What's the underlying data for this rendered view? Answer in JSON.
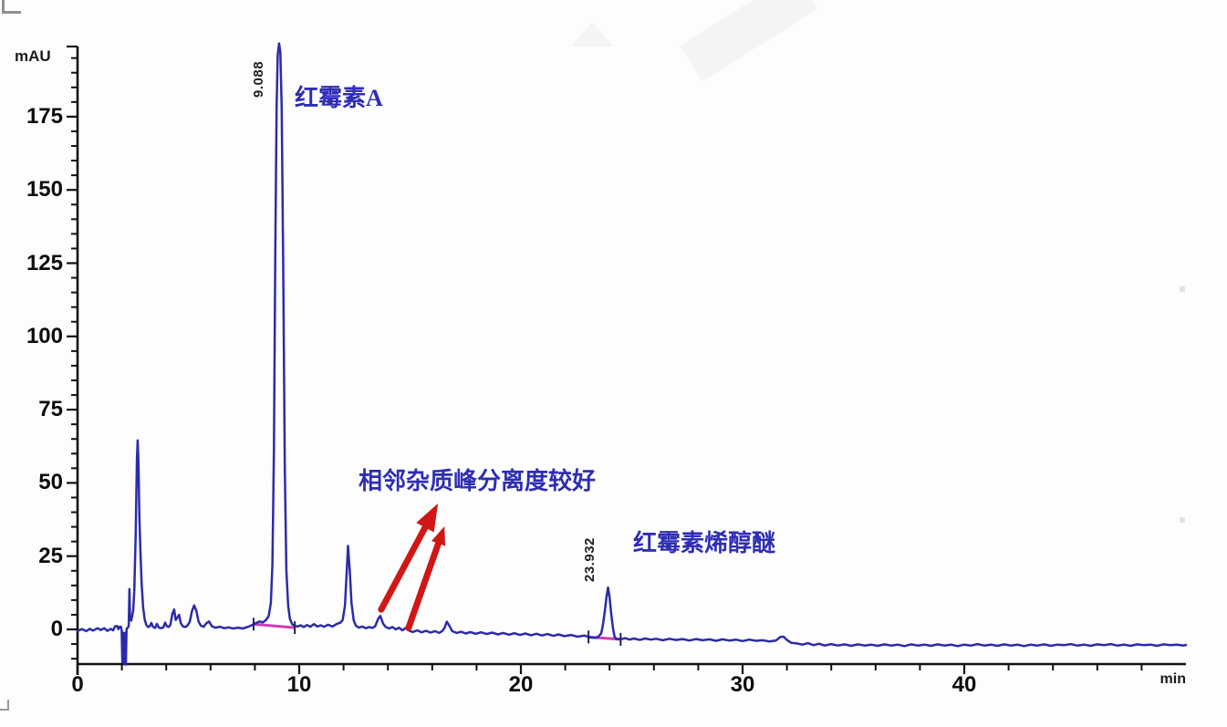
{
  "chart_data": {
    "type": "line",
    "description": "HPLC chromatogram (UV detection)",
    "xlabel": "min",
    "ylabel": "mAU",
    "xlim": [
      0,
      50
    ],
    "ylim": [
      -15,
      205
    ],
    "x_axis": {
      "unit": "min",
      "major_ticks": [
        0,
        10,
        20,
        30,
        40
      ],
      "minor_step": 2,
      "minor_min": 2,
      "minor_max": 48
    },
    "y_axis": {
      "unit": "mAU",
      "major_ticks": [
        0,
        25,
        50,
        75,
        100,
        125,
        150,
        175
      ],
      "minor_step": 5,
      "minor_min": -10,
      "minor_max": 195
    },
    "colors": {
      "trace": "#2b2baa",
      "integration": "#cf3cb4",
      "arrow": "#d11616",
      "annotation": "#2e2eb5",
      "axis": "#111111"
    },
    "peaks": [
      {
        "rt_label": "9.088",
        "rt_min": 9.088,
        "height_mau": 200,
        "name": "红霉素A"
      },
      {
        "rt_label": "23.932",
        "rt_min": 23.932,
        "height_mau": 14.3,
        "name": "红霉素烯醇醚"
      }
    ],
    "annotation_note": "相邻杂质峰分离度较好",
    "integration_baselines": [
      {
        "x1": 7.94,
        "y1": 1.8,
        "x2": 9.8,
        "y2": 0.6
      },
      {
        "x1": 23.05,
        "y1": -2.6,
        "x2": 24.5,
        "y2": -3.4
      }
    ],
    "arrows": [
      {
        "from_x": 13.7,
        "from_y": 6.8,
        "to_x": 16.26,
        "to_y": 43.0,
        "head_len": 30,
        "head_w": 11
      },
      {
        "from_x": 14.93,
        "from_y": 0.5,
        "to_x": 16.55,
        "to_y": 35.2,
        "head_len": 20,
        "head_w": 8
      }
    ],
    "series": [
      {
        "name": "UV trace",
        "points": [
          [
            0,
            -0.5
          ],
          [
            0.2,
            0.1
          ],
          [
            0.4,
            -0.6
          ],
          [
            0.55,
            0.2
          ],
          [
            0.7,
            -0.4
          ],
          [
            0.9,
            0.4
          ],
          [
            1.05,
            -0.2
          ],
          [
            1.2,
            0.4
          ],
          [
            1.35,
            -0.5
          ],
          [
            1.5,
            0.2
          ],
          [
            1.6,
            -0.3
          ],
          [
            1.7,
            1.1
          ],
          [
            1.8,
            1.1
          ],
          [
            1.84,
            0.1
          ],
          [
            1.9,
            0.9
          ],
          [
            1.96,
            0.9
          ],
          [
            1.99,
            -0.3
          ],
          [
            2.02,
            -11.2
          ],
          [
            2.05,
            -11.2
          ],
          [
            2.07,
            -1.2
          ],
          [
            2.11,
            -1.2
          ],
          [
            2.14,
            -12
          ],
          [
            2.18,
            -12
          ],
          [
            2.21,
            0.2
          ],
          [
            2.27,
            0.6
          ],
          [
            2.31,
            1.2
          ],
          [
            2.34,
            13.8
          ],
          [
            2.37,
            3.6
          ],
          [
            2.42,
            3.0
          ],
          [
            2.46,
            4.4
          ],
          [
            2.51,
            6.5
          ],
          [
            2.56,
            13
          ],
          [
            2.62,
            32
          ],
          [
            2.68,
            58
          ],
          [
            2.71,
            64.5
          ],
          [
            2.75,
            57
          ],
          [
            2.79,
            38
          ],
          [
            2.84,
            26
          ],
          [
            2.89,
            16
          ],
          [
            2.96,
            7.5
          ],
          [
            3.03,
            3.4
          ],
          [
            3.1,
            1.6
          ],
          [
            3.18,
            0.8
          ],
          [
            3.26,
            1.1
          ],
          [
            3.33,
            2.2
          ],
          [
            3.41,
            0.8
          ],
          [
            3.5,
            0.5
          ],
          [
            3.58,
            1.9
          ],
          [
            3.67,
            0.6
          ],
          [
            3.77,
            0.4
          ],
          [
            3.87,
            0.7
          ],
          [
            3.95,
            2.3
          ],
          [
            4.03,
            1.1
          ],
          [
            4.11,
            0.8
          ],
          [
            4.19,
            1.6
          ],
          [
            4.28,
            5.4
          ],
          [
            4.36,
            6.8
          ],
          [
            4.43,
            3.2
          ],
          [
            4.51,
            4.1
          ],
          [
            4.58,
            5.0
          ],
          [
            4.66,
            2.1
          ],
          [
            4.76,
            1.0
          ],
          [
            4.86,
            0.8
          ],
          [
            4.96,
            1.3
          ],
          [
            5.06,
            2.6
          ],
          [
            5.16,
            6.2
          ],
          [
            5.26,
            8.2
          ],
          [
            5.36,
            6.4
          ],
          [
            5.46,
            2.6
          ],
          [
            5.57,
            1.2
          ],
          [
            5.69,
            0.9
          ],
          [
            5.81,
            2.1
          ],
          [
            5.93,
            2.7
          ],
          [
            6.06,
            1.1
          ],
          [
            6.22,
            0.6
          ],
          [
            6.42,
            0.9
          ],
          [
            6.62,
            0.4
          ],
          [
            6.82,
            0.7
          ],
          [
            7.02,
            0.3
          ],
          [
            7.24,
            0.6
          ],
          [
            7.46,
            0.3
          ],
          [
            7.7,
            0.9
          ],
          [
            7.9,
            1.6
          ],
          [
            8.06,
            2.2
          ],
          [
            8.22,
            2.7
          ],
          [
            8.36,
            2.4
          ],
          [
            8.5,
            3.2
          ],
          [
            8.62,
            4.5
          ],
          [
            8.72,
            9
          ],
          [
            8.79,
            22
          ],
          [
            8.86,
            62
          ],
          [
            8.92,
            130
          ],
          [
            8.98,
            178
          ],
          [
            9.03,
            196
          ],
          [
            9.09,
            200
          ],
          [
            9.15,
            197
          ],
          [
            9.21,
            178
          ],
          [
            9.28,
            122
          ],
          [
            9.35,
            55
          ],
          [
            9.42,
            20
          ],
          [
            9.5,
            8
          ],
          [
            9.58,
            3.6
          ],
          [
            9.68,
            1.8
          ],
          [
            9.8,
            1.2
          ],
          [
            9.93,
            1.0
          ],
          [
            10.06,
            1.4
          ],
          [
            10.2,
            0.8
          ],
          [
            10.35,
            1.5
          ],
          [
            10.5,
            0.9
          ],
          [
            10.66,
            1.8
          ],
          [
            10.82,
            1.0
          ],
          [
            10.97,
            1.4
          ],
          [
            11.12,
            0.9
          ],
          [
            11.3,
            1.6
          ],
          [
            11.5,
            1.0
          ],
          [
            11.7,
            1.9
          ],
          [
            11.86,
            2.3
          ],
          [
            11.96,
            3.2
          ],
          [
            12.06,
            8
          ],
          [
            12.13,
            18
          ],
          [
            12.2,
            28.5
          ],
          [
            12.28,
            20
          ],
          [
            12.36,
            9
          ],
          [
            12.46,
            3
          ],
          [
            12.56,
            1.2
          ],
          [
            12.7,
            0.6
          ],
          [
            12.85,
            1.0
          ],
          [
            13.0,
            0.4
          ],
          [
            13.16,
            0.8
          ],
          [
            13.3,
            0.5
          ],
          [
            13.43,
            1.1
          ],
          [
            13.56,
            3.6
          ],
          [
            13.66,
            4.6
          ],
          [
            13.78,
            2.0
          ],
          [
            13.9,
            0.8
          ],
          [
            14.06,
            0.3
          ],
          [
            14.2,
            0.8
          ],
          [
            14.36,
            0.0
          ],
          [
            14.5,
            0.6
          ],
          [
            14.66,
            -0.3
          ],
          [
            14.8,
            0.5
          ],
          [
            14.96,
            -0.4
          ],
          [
            15.12,
            -0.9
          ],
          [
            15.32,
            -0.3
          ],
          [
            15.52,
            -1.0
          ],
          [
            15.72,
            -0.5
          ],
          [
            15.92,
            -1.1
          ],
          [
            16.12,
            -0.6
          ],
          [
            16.32,
            -1.2
          ],
          [
            16.46,
            -0.5
          ],
          [
            16.56,
            0.6
          ],
          [
            16.66,
            2.6
          ],
          [
            16.76,
            1.4
          ],
          [
            16.9,
            -0.6
          ],
          [
            17.1,
            -1.2
          ],
          [
            17.3,
            -0.8
          ],
          [
            17.52,
            -1.4
          ],
          [
            17.72,
            -0.9
          ],
          [
            17.96,
            -1.5
          ],
          [
            18.2,
            -1.0
          ],
          [
            18.46,
            -1.6
          ],
          [
            18.7,
            -1.1
          ],
          [
            18.96,
            -1.7
          ],
          [
            19.2,
            -1.2
          ],
          [
            19.46,
            -1.8
          ],
          [
            19.7,
            -1.3
          ],
          [
            19.96,
            -1.9
          ],
          [
            20.2,
            -1.4
          ],
          [
            20.46,
            -2.0
          ],
          [
            20.7,
            -1.5
          ],
          [
            20.96,
            -2.1
          ],
          [
            21.2,
            -1.6
          ],
          [
            21.46,
            -2.2
          ],
          [
            21.7,
            -1.7
          ],
          [
            21.96,
            -2.3
          ],
          [
            22.26,
            -1.9
          ],
          [
            22.56,
            -2.5
          ],
          [
            22.86,
            -2.1
          ],
          [
            23.1,
            -2.7
          ],
          [
            23.36,
            -2.9
          ],
          [
            23.5,
            -2.4
          ],
          [
            23.62,
            -1.4
          ],
          [
            23.7,
            1.5
          ],
          [
            23.78,
            6
          ],
          [
            23.86,
            11
          ],
          [
            23.93,
            14.3
          ],
          [
            24.0,
            11
          ],
          [
            24.08,
            5
          ],
          [
            24.16,
            0
          ],
          [
            24.23,
            -2.6
          ],
          [
            24.33,
            -3.3
          ],
          [
            24.5,
            -3.4
          ],
          [
            24.7,
            -3.0
          ],
          [
            24.9,
            -3.5
          ],
          [
            25.1,
            -3.1
          ],
          [
            25.36,
            -3.6
          ],
          [
            25.6,
            -3.1
          ],
          [
            25.86,
            -3.5
          ],
          [
            26.1,
            -3.2
          ],
          [
            26.4,
            -3.7
          ],
          [
            26.7,
            -3.2
          ],
          [
            27.0,
            -3.6
          ],
          [
            27.3,
            -3.3
          ],
          [
            27.6,
            -3.8
          ],
          [
            27.9,
            -3.3
          ],
          [
            28.2,
            -3.7
          ],
          [
            28.5,
            -3.4
          ],
          [
            28.8,
            -3.9
          ],
          [
            29.1,
            -3.4
          ],
          [
            29.4,
            -3.8
          ],
          [
            29.7,
            -3.5
          ],
          [
            30.0,
            -4.0
          ],
          [
            30.3,
            -3.5
          ],
          [
            30.6,
            -3.9
          ],
          [
            30.9,
            -3.7
          ],
          [
            31.2,
            -4.1
          ],
          [
            31.5,
            -3.8
          ],
          [
            31.7,
            -2.6
          ],
          [
            31.85,
            -2.5
          ],
          [
            32.0,
            -3.6
          ],
          [
            32.2,
            -4.6
          ],
          [
            32.45,
            -4.8
          ],
          [
            32.7,
            -5.2
          ],
          [
            32.95,
            -4.7
          ],
          [
            33.2,
            -5.4
          ],
          [
            33.45,
            -4.9
          ],
          [
            33.7,
            -5.5
          ],
          [
            34.0,
            -5.0
          ],
          [
            34.3,
            -5.5
          ],
          [
            34.6,
            -5.1
          ],
          [
            34.9,
            -5.6
          ],
          [
            35.2,
            -5.1
          ],
          [
            35.5,
            -5.5
          ],
          [
            35.8,
            -5.2
          ],
          [
            36.1,
            -5.6
          ],
          [
            36.4,
            -5.1
          ],
          [
            36.7,
            -5.5
          ],
          [
            37.0,
            -5.2
          ],
          [
            37.3,
            -5.7
          ],
          [
            37.6,
            -5.1
          ],
          [
            37.9,
            -5.5
          ],
          [
            38.2,
            -5.2
          ],
          [
            38.5,
            -5.6
          ],
          [
            38.8,
            -5.1
          ],
          [
            39.1,
            -5.5
          ],
          [
            39.4,
            -5.2
          ],
          [
            39.7,
            -5.7
          ],
          [
            40.0,
            -5.2
          ],
          [
            40.3,
            -5.5
          ],
          [
            40.6,
            -5.0
          ],
          [
            40.9,
            -5.5
          ],
          [
            41.2,
            -5.2
          ],
          [
            41.5,
            -5.6
          ],
          [
            41.8,
            -5.1
          ],
          [
            42.1,
            -5.5
          ],
          [
            42.4,
            -5.2
          ],
          [
            42.7,
            -5.7
          ],
          [
            43.0,
            -5.2
          ],
          [
            43.3,
            -5.5
          ],
          [
            43.6,
            -5.1
          ],
          [
            43.9,
            -5.6
          ],
          [
            44.2,
            -5.2
          ],
          [
            44.5,
            -5.4
          ],
          [
            44.8,
            -5.0
          ],
          [
            45.1,
            -5.5
          ],
          [
            45.4,
            -5.2
          ],
          [
            45.7,
            -5.6
          ],
          [
            46.0,
            -5.1
          ],
          [
            46.3,
            -5.4
          ],
          [
            46.6,
            -5.0
          ],
          [
            46.9,
            -5.5
          ],
          [
            47.2,
            -5.2
          ],
          [
            47.5,
            -5.6
          ],
          [
            47.8,
            -5.1
          ],
          [
            48.1,
            -5.4
          ],
          [
            48.4,
            -5.2
          ],
          [
            48.7,
            -5.6
          ],
          [
            49.0,
            -5.1
          ],
          [
            49.3,
            -5.4
          ],
          [
            49.6,
            -5.2
          ],
          [
            49.9,
            -5.5
          ],
          [
            50.0,
            -5.3
          ]
        ]
      }
    ]
  }
}
